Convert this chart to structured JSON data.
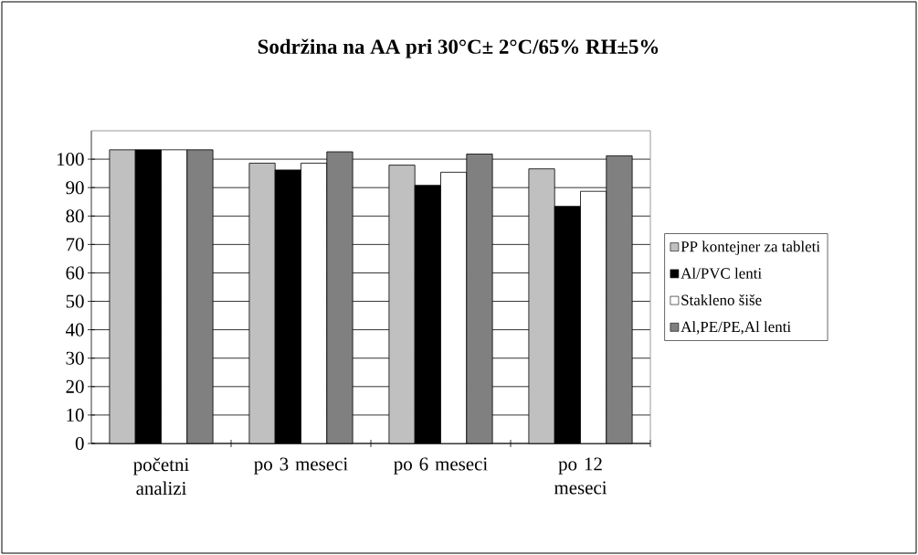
{
  "chart_data": {
    "type": "bar",
    "title": "Sodržina na AA pri 30°C± 2°C/65% RH±5%",
    "categories": [
      "početni analizi",
      "po 3 meseci",
      "po 6 meseci",
      "po 12 meseci"
    ],
    "series": [
      {
        "name": "PP kontejner za tableti",
        "color": "#c0c0c0",
        "values": [
          103.3,
          98.6,
          97.9,
          96.6
        ]
      },
      {
        "name": "Al/PVC lenti",
        "color": "#000000",
        "values": [
          103.3,
          96.2,
          90.8,
          83.4
        ]
      },
      {
        "name": "Stakleno šiše",
        "color": "#ffffff",
        "values": [
          103.3,
          98.6,
          95.4,
          88.7
        ]
      },
      {
        "name": "Al,PE/PE,Al lenti",
        "color": "#808080",
        "values": [
          103.3,
          102.6,
          101.8,
          101.2
        ]
      }
    ],
    "ylim": [
      0,
      110
    ],
    "yticks": [
      0,
      10,
      20,
      30,
      40,
      50,
      60,
      70,
      80,
      90,
      100
    ],
    "grid": "y",
    "legend": "right"
  }
}
